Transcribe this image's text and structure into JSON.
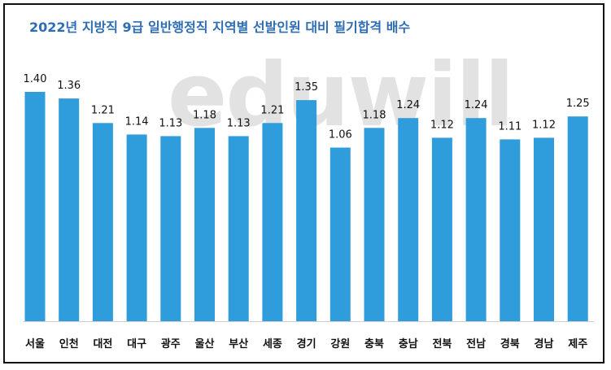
{
  "colors": {
    "bar": "#2f9cdb",
    "title": "#2e6db4",
    "frame": "#111111",
    "watermark": "#e2e2e2"
  },
  "watermark": "eduwill",
  "chart_data": {
    "type": "bar",
    "title": "2022년 지방직 9급 일반행정직 지역별 선발인원 대비 필기합격 배수",
    "xlabel": "",
    "ylabel": "",
    "ylim": [
      0,
      1.4
    ],
    "grid": false,
    "legend": "none",
    "categories": [
      "서울",
      "인천",
      "대전",
      "대구",
      "광주",
      "울산",
      "부산",
      "세종",
      "경기",
      "강원",
      "충북",
      "충남",
      "전북",
      "전남",
      "경북",
      "경남",
      "제주"
    ],
    "values": [
      1.4,
      1.36,
      1.21,
      1.14,
      1.13,
      1.18,
      1.13,
      1.21,
      1.35,
      1.06,
      1.18,
      1.24,
      1.12,
      1.24,
      1.11,
      1.12,
      1.25
    ],
    "value_labels": [
      "1.40",
      "1.36",
      "1.21",
      "1.14",
      "1.13",
      "1.18",
      "1.13",
      "1.21",
      "1.35",
      "1.06",
      "1.18",
      "1.24",
      "1.12",
      "1.24",
      "1.11",
      "1.12",
      "1.25"
    ]
  }
}
